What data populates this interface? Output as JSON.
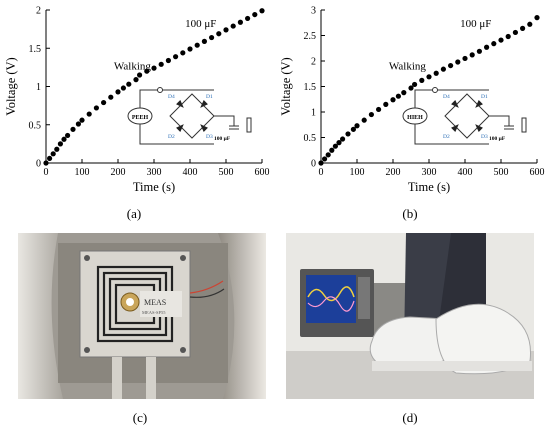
{
  "chart_data": [
    {
      "type": "scatter",
      "panel_label": "(a)",
      "xlabel": "Time (s)",
      "ylabel": "Voltage (V)",
      "xlim": [
        0,
        600
      ],
      "ylim": [
        0,
        2
      ],
      "xticks": [
        "0",
        "100",
        "200",
        "300",
        "400",
        "500",
        "600"
      ],
      "yticks": [
        "0",
        "0.5",
        "1",
        "1.5",
        "2"
      ],
      "annotations": [
        "Walking",
        "100 μF"
      ],
      "circuit": {
        "source": "PEEH",
        "diodes": [
          "D4",
          "D1",
          "D2",
          "D3"
        ],
        "capacitor": "100 μF"
      },
      "x": [
        0,
        10,
        20,
        30,
        40,
        50,
        60,
        75,
        90,
        100,
        120,
        140,
        160,
        180,
        200,
        215,
        230,
        250,
        260,
        280,
        300,
        320,
        340,
        360,
        380,
        400,
        420,
        440,
        460,
        480,
        500,
        520,
        540,
        560,
        580,
        600
      ],
      "y": [
        0,
        0.06,
        0.12,
        0.18,
        0.25,
        0.31,
        0.36,
        0.44,
        0.51,
        0.56,
        0.64,
        0.72,
        0.79,
        0.86,
        0.93,
        0.98,
        1.03,
        1.09,
        1.15,
        1.2,
        1.24,
        1.29,
        1.34,
        1.39,
        1.44,
        1.49,
        1.54,
        1.59,
        1.64,
        1.69,
        1.74,
        1.79,
        1.84,
        1.89,
        1.94,
        1.99
      ]
    },
    {
      "type": "scatter",
      "panel_label": "(b)",
      "xlabel": "Time (s)",
      "ylabel": "Voltage (V)",
      "xlim": [
        0,
        600
      ],
      "ylim": [
        0,
        3
      ],
      "xticks": [
        "0",
        "100",
        "200",
        "300",
        "400",
        "500",
        "600"
      ],
      "yticks": [
        "0",
        "0.5",
        "1",
        "1.5",
        "2",
        "2.5",
        "3"
      ],
      "annotations": [
        "Walking",
        "100 μF"
      ],
      "circuit": {
        "source": "HIEH",
        "diodes": [
          "D4",
          "D1",
          "D2",
          "D3"
        ],
        "capacitor": "100 μF"
      },
      "x": [
        0,
        10,
        20,
        30,
        40,
        50,
        60,
        75,
        90,
        100,
        120,
        140,
        160,
        180,
        200,
        215,
        230,
        250,
        260,
        280,
        300,
        320,
        340,
        360,
        380,
        400,
        420,
        440,
        460,
        480,
        500,
        520,
        540,
        560,
        580,
        600
      ],
      "y": [
        0,
        0.08,
        0.16,
        0.25,
        0.33,
        0.4,
        0.47,
        0.57,
        0.66,
        0.73,
        0.84,
        0.95,
        1.05,
        1.15,
        1.24,
        1.31,
        1.38,
        1.47,
        1.54,
        1.62,
        1.69,
        1.76,
        1.84,
        1.91,
        1.98,
        2.05,
        2.12,
        2.19,
        2.27,
        2.34,
        2.41,
        2.48,
        2.56,
        2.64,
        2.72,
        2.85
      ]
    }
  ],
  "photos": [
    {
      "panel_label": "(c)",
      "sensor_text": "MEAS",
      "sensor_code": "MEAS-SP55"
    },
    {
      "panel_label": "(d)"
    }
  ]
}
